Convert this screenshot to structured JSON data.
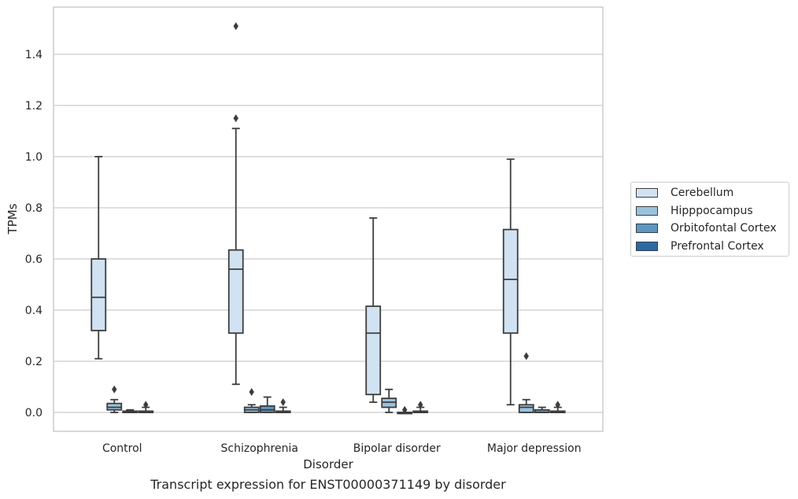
{
  "chart_data": {
    "type": "boxplot",
    "xlabel": "Disorder",
    "ylabel": "TPMs",
    "caption": "Transcript expression for ENST00000371149 by disorder",
    "ylim": [
      -0.07,
      1.59
    ],
    "yticks": [
      0.0,
      0.2,
      0.4,
      0.6,
      0.8,
      1.0,
      1.2,
      1.4
    ],
    "ytick_labels": [
      "0.0",
      "0.2",
      "0.4",
      "0.6",
      "0.8",
      "1.0",
      "1.2",
      "1.4"
    ],
    "grid": "horizontal",
    "legend_position": "outside-right",
    "categories": [
      "Control",
      "Schizophrenia",
      "Bipolar disorder",
      "Major depression"
    ],
    "series": [
      {
        "name": "Cerebellum",
        "color": "#d1e2f2",
        "boxes": [
          {
            "whislo": 0.21,
            "q1": 0.32,
            "med": 0.45,
            "q3": 0.6,
            "whishi": 1.0,
            "fliers": []
          },
          {
            "whislo": 0.11,
            "q1": 0.31,
            "med": 0.56,
            "q3": 0.635,
            "whishi": 1.11,
            "fliers": [
              1.15,
              1.51
            ]
          },
          {
            "whislo": 0.04,
            "q1": 0.07,
            "med": 0.31,
            "q3": 0.415,
            "whishi": 0.76,
            "fliers": []
          },
          {
            "whislo": 0.03,
            "q1": 0.31,
            "med": 0.52,
            "q3": 0.715,
            "whishi": 0.99,
            "fliers": []
          }
        ]
      },
      {
        "name": "Hipppocampus",
        "color": "#9ac2dc",
        "boxes": [
          {
            "whislo": 0.0,
            "q1": 0.01,
            "med": 0.02,
            "q3": 0.035,
            "whishi": 0.05,
            "fliers": [
              0.09
            ]
          },
          {
            "whislo": 0.0,
            "q1": 0.0,
            "med": 0.01,
            "q3": 0.02,
            "whishi": 0.03,
            "fliers": [
              0.08
            ]
          },
          {
            "whislo": 0.0,
            "q1": 0.02,
            "med": 0.04,
            "q3": 0.055,
            "whishi": 0.09,
            "fliers": []
          },
          {
            "whislo": 0.0,
            "q1": 0.0,
            "med": 0.02,
            "q3": 0.03,
            "whishi": 0.05,
            "fliers": [
              0.22
            ]
          }
        ]
      },
      {
        "name": "Orbitofontal Cortex",
        "color": "#5b97c6",
        "boxes": [
          {
            "whislo": 0.0,
            "q1": 0.0,
            "med": 0.0,
            "q3": 0.005,
            "whishi": 0.01,
            "fliers": []
          },
          {
            "whislo": 0.0,
            "q1": 0.0,
            "med": 0.01,
            "q3": 0.025,
            "whishi": 0.06,
            "fliers": []
          },
          {
            "whislo": 0.0,
            "q1": 0.0,
            "med": 0.0,
            "q3": 0.0,
            "whishi": 0.0,
            "fliers": [
              0.01
            ]
          },
          {
            "whislo": 0.0,
            "q1": 0.0,
            "med": 0.0,
            "q3": 0.01,
            "whishi": 0.02,
            "fliers": []
          }
        ]
      },
      {
        "name": "Prefrontal Cortex",
        "color": "#2a6aa9",
        "boxes": [
          {
            "whislo": 0.0,
            "q1": 0.0,
            "med": 0.0,
            "q3": 0.005,
            "whishi": 0.02,
            "fliers": [
              0.03
            ]
          },
          {
            "whislo": 0.0,
            "q1": 0.0,
            "med": 0.0,
            "q3": 0.005,
            "whishi": 0.02,
            "fliers": [
              0.04
            ]
          },
          {
            "whislo": 0.0,
            "q1": 0.0,
            "med": 0.0,
            "q3": 0.005,
            "whishi": 0.02,
            "fliers": [
              0.03
            ]
          },
          {
            "whislo": 0.0,
            "q1": 0.0,
            "med": 0.0,
            "q3": 0.005,
            "whishi": 0.02,
            "fliers": [
              0.03
            ]
          }
        ]
      }
    ]
  }
}
